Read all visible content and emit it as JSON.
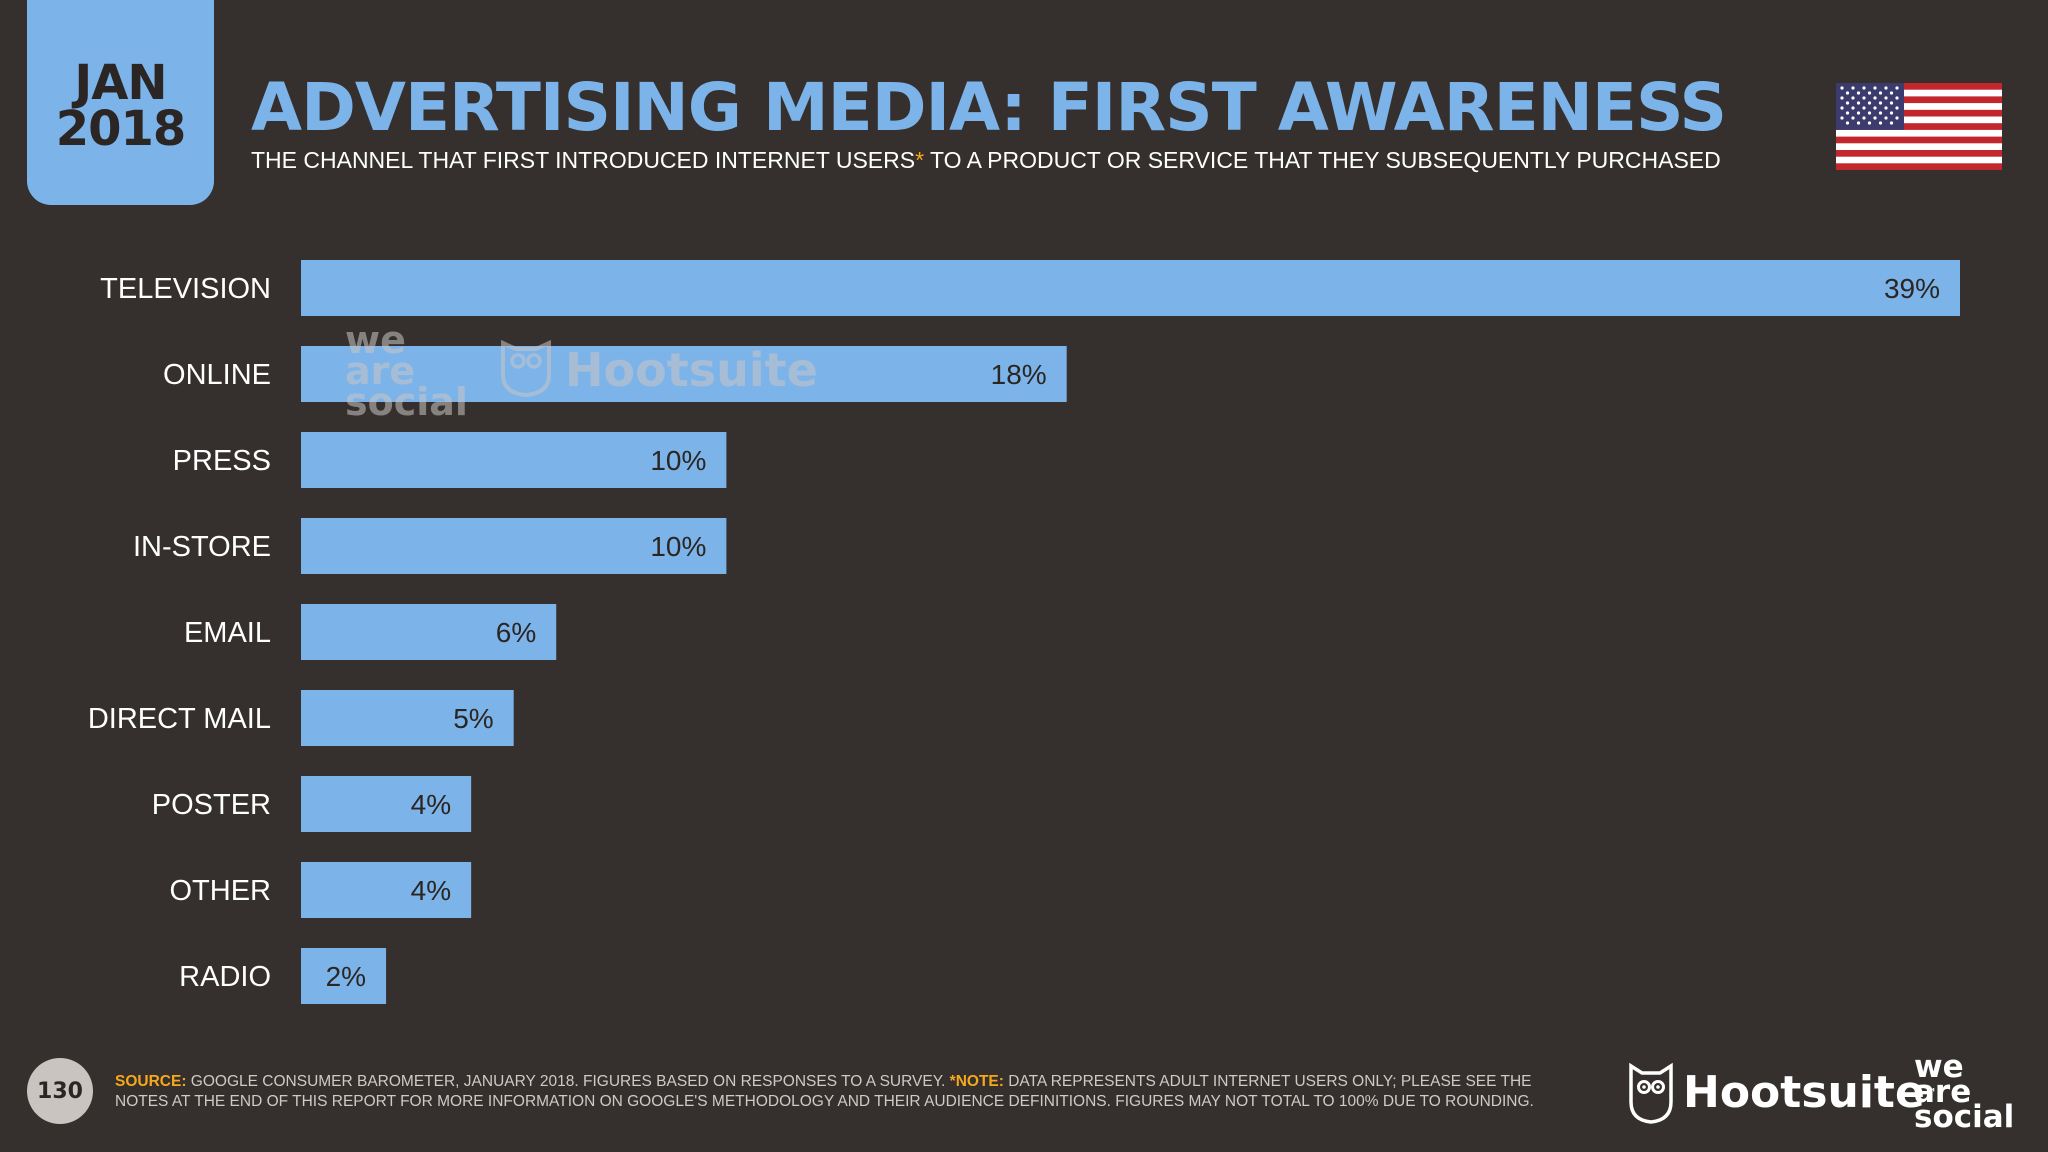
{
  "header": {
    "date_month": "JAN",
    "date_year": "2018",
    "title": "ADVERTISING MEDIA: FIRST AWARENESS",
    "subtitle_before": "THE CHANNEL THAT FIRST INTRODUCED INTERNET USERS",
    "subtitle_star": "*",
    "subtitle_after": " TO A PRODUCT OR SERVICE THAT THEY SUBSEQUENTLY PURCHASED",
    "flag_icon": "us-flag-icon"
  },
  "watermark": {
    "brand1": "we are social",
    "brand2": "Hootsuite"
  },
  "chart_data": {
    "type": "bar",
    "orientation": "horizontal",
    "categories": [
      "TELEVISION",
      "ONLINE",
      "PRESS",
      "IN-STORE",
      "EMAIL",
      "DIRECT MAIL",
      "POSTER",
      "OTHER",
      "RADIO"
    ],
    "values": [
      39,
      18,
      10,
      10,
      6,
      5,
      4,
      4,
      2
    ],
    "value_labels": [
      "39%",
      "18%",
      "10%",
      "10%",
      "6%",
      "5%",
      "4%",
      "4%",
      "2%"
    ],
    "xlim": [
      0,
      39
    ],
    "grid": false,
    "colors": {
      "bar": "#7cb4ea",
      "background": "#35302d",
      "label": "#ffffff",
      "value_label": "#2b2623"
    }
  },
  "footer": {
    "page_number": "130",
    "source_label": "SOURCE:",
    "source_text": " GOOGLE CONSUMER BAROMETER, JANUARY 2018. FIGURES BASED ON RESPONSES TO A SURVEY. ",
    "note_label": "*NOTE:",
    "note_text": " DATA REPRESENTS ADULT INTERNET USERS ONLY; PLEASE SEE THE NOTES AT THE END OF THIS REPORT FOR MORE INFORMATION ON GOOGLE'S METHODOLOGY AND THEIR AUDIENCE DEFINITIONS. FIGURES MAY NOT TOTAL TO 100% DUE TO ROUNDING.",
    "logo1": "Hootsuite",
    "logo1_tm": "™",
    "logo2_line1": "we",
    "logo2_line2": "are",
    "logo2_line3": "social",
    "accent_color": "#f5a81c"
  }
}
